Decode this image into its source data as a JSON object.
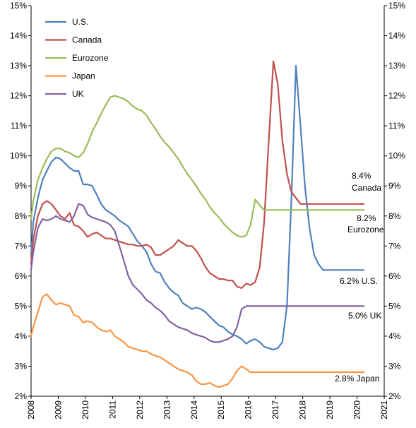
{
  "chart_data": {
    "type": "line",
    "title": "",
    "xlabel": "",
    "ylabel": "",
    "xlim": [
      2008,
      2021
    ],
    "ylim": [
      2,
      15
    ],
    "y_ticks": [
      "2%",
      "3%",
      "4%",
      "5%",
      "6%",
      "7%",
      "8%",
      "9%",
      "10%",
      "11%",
      "12%",
      "13%",
      "14%",
      "15%"
    ],
    "x_ticks": [
      "2008",
      "2009",
      "2010",
      "2011",
      "2012",
      "2013",
      "2014",
      "2015",
      "2016",
      "2017",
      "2018",
      "2019",
      "2020",
      "2021"
    ],
    "grid": false,
    "legend_position": "top-left",
    "series": [
      {
        "name": "U.S.",
        "color": "#4f81bd",
        "x": [
          2008.0,
          2008.08,
          2008.25,
          2008.42,
          2008.58,
          2008.75,
          2008.92,
          2009.08,
          2009.25,
          2009.42,
          2009.58,
          2009.75,
          2009.92,
          2010.08,
          2010.25,
          2010.42,
          2010.58,
          2010.75,
          2010.92,
          2011.08,
          2011.25,
          2011.42,
          2011.58,
          2011.75,
          2011.92,
          2012.08,
          2012.25,
          2012.42,
          2012.58,
          2012.75,
          2012.92,
          2013.08,
          2013.25,
          2013.42,
          2013.58,
          2013.75,
          2013.92,
          2014.08,
          2014.25,
          2014.42,
          2014.58,
          2014.75,
          2014.92,
          2015.08,
          2015.25,
          2015.42,
          2015.58,
          2015.75,
          2015.92,
          2016.08,
          2016.25,
          2016.42,
          2016.58,
          2016.75,
          2016.92,
          2017.08,
          2017.25,
          2017.42,
          2017.58,
          2017.75,
          2017.92,
          2018.08,
          2018.25,
          2018.42,
          2018.58,
          2018.75,
          2018.92,
          2019.08,
          2019.25,
          2019.42,
          2019.5,
          2019.58,
          2019.67,
          2019.75,
          2019.83,
          2019.92,
          2020.0,
          2020.08,
          2020.17,
          2020.25
        ],
        "values": [
          6.7,
          7.8,
          8.6,
          9.2,
          9.5,
          9.8,
          9.95,
          9.9,
          9.75,
          9.6,
          9.5,
          9.5,
          9.05,
          9.05,
          9.0,
          8.7,
          8.4,
          8.2,
          8.1,
          8.0,
          7.85,
          7.75,
          7.65,
          7.4,
          7.15,
          7.0,
          6.8,
          6.4,
          6.15,
          6.1,
          5.8,
          5.6,
          5.45,
          5.35,
          5.1,
          5.0,
          4.9,
          4.95,
          4.9,
          4.8,
          4.65,
          4.5,
          4.35,
          4.3,
          4.15,
          4.05,
          4.0,
          3.9,
          3.75,
          3.85,
          3.9,
          3.8,
          3.65,
          3.6,
          3.55,
          3.6,
          3.8,
          5.0,
          8.5,
          13.0,
          11.0,
          9.0,
          7.6,
          6.7,
          6.4,
          6.2,
          6.2,
          6.2,
          6.2,
          6.2,
          6.2,
          6.2,
          6.2,
          6.2,
          6.2,
          6.2,
          6.2,
          6.2,
          6.2,
          6.2
        ]
      },
      {
        "name": "Canada",
        "color": "#c0504d",
        "x": [
          2008.0,
          2008.08,
          2008.25,
          2008.42,
          2008.58,
          2008.75,
          2008.92,
          2009.08,
          2009.25,
          2009.42,
          2009.58,
          2009.75,
          2009.92,
          2010.08,
          2010.25,
          2010.42,
          2010.58,
          2010.75,
          2010.92,
          2011.08,
          2011.25,
          2011.42,
          2011.58,
          2011.75,
          2011.92,
          2012.08,
          2012.25,
          2012.42,
          2012.58,
          2012.75,
          2012.92,
          2013.08,
          2013.25,
          2013.42,
          2013.58,
          2013.75,
          2013.92,
          2014.08,
          2014.25,
          2014.42,
          2014.58,
          2014.75,
          2014.92,
          2015.08,
          2015.25,
          2015.42,
          2015.58,
          2015.75,
          2015.92,
          2016.08,
          2016.25,
          2016.42,
          2016.58,
          2016.75,
          2016.92,
          2017.08,
          2017.25,
          2017.42,
          2017.58,
          2017.75,
          2017.92,
          2018.08,
          2018.25,
          2018.42,
          2018.58,
          2018.75,
          2018.92,
          2019.08,
          2019.25,
          2019.42,
          2019.5,
          2019.58,
          2019.67,
          2019.75,
          2019.83,
          2019.92,
          2020.0,
          2020.08,
          2020.17,
          2020.25
        ],
        "values": [
          6.4,
          7.2,
          8.0,
          8.4,
          8.5,
          8.4,
          8.2,
          8.0,
          7.9,
          8.1,
          7.7,
          7.65,
          7.5,
          7.3,
          7.4,
          7.45,
          7.35,
          7.25,
          7.25,
          7.2,
          7.15,
          7.1,
          7.05,
          7.05,
          7.0,
          7.0,
          7.05,
          6.95,
          6.7,
          6.7,
          6.8,
          6.9,
          7.0,
          7.2,
          7.1,
          7.0,
          7.0,
          6.85,
          6.6,
          6.3,
          6.1,
          6.0,
          5.9,
          5.9,
          5.85,
          5.85,
          5.65,
          5.6,
          5.75,
          5.7,
          5.8,
          6.3,
          7.8,
          10.5,
          13.15,
          12.4,
          10.5,
          9.4,
          8.8,
          8.6,
          8.4,
          8.4,
          8.4,
          8.4,
          8.4,
          8.4,
          8.4,
          8.4,
          8.4,
          8.4,
          8.4,
          8.4,
          8.4,
          8.4,
          8.4,
          8.4,
          8.4,
          8.4,
          8.4,
          8.4
        ]
      },
      {
        "name": "Eurozone",
        "color": "#9bbb59",
        "x": [
          2008.0,
          2008.08,
          2008.25,
          2008.42,
          2008.58,
          2008.75,
          2008.92,
          2009.08,
          2009.25,
          2009.42,
          2009.58,
          2009.75,
          2009.92,
          2010.08,
          2010.25,
          2010.42,
          2010.58,
          2010.75,
          2010.92,
          2011.08,
          2011.25,
          2011.42,
          2011.58,
          2011.75,
          2011.92,
          2012.08,
          2012.25,
          2012.42,
          2012.58,
          2012.75,
          2012.92,
          2013.08,
          2013.25,
          2013.42,
          2013.58,
          2013.75,
          2013.92,
          2014.08,
          2014.25,
          2014.42,
          2014.58,
          2014.75,
          2014.92,
          2015.08,
          2015.25,
          2015.42,
          2015.58,
          2015.75,
          2015.92,
          2016.08,
          2016.25,
          2016.42,
          2016.58,
          2016.75,
          2016.92,
          2017.08,
          2017.25,
          2017.42,
          2017.58,
          2017.75,
          2017.92,
          2018.08,
          2018.25,
          2018.42,
          2018.58,
          2018.75,
          2018.92,
          2019.08,
          2019.25,
          2019.42,
          2019.5,
          2019.58,
          2019.67,
          2019.75,
          2019.83,
          2019.92,
          2020.0,
          2020.08,
          2020.17,
          2020.25
        ],
        "values": [
          7.9,
          8.5,
          9.2,
          9.6,
          9.9,
          10.15,
          10.25,
          10.25,
          10.15,
          10.1,
          10.0,
          9.95,
          10.1,
          10.4,
          10.8,
          11.1,
          11.4,
          11.7,
          11.95,
          12.0,
          11.95,
          11.9,
          11.8,
          11.65,
          11.55,
          11.5,
          11.35,
          11.1,
          10.9,
          10.65,
          10.45,
          10.3,
          10.1,
          9.9,
          9.65,
          9.4,
          9.2,
          9.0,
          8.75,
          8.55,
          8.3,
          8.1,
          7.95,
          7.75,
          7.6,
          7.45,
          7.35,
          7.3,
          7.35,
          7.7,
          8.55,
          8.35,
          8.2,
          8.2,
          8.2,
          8.2,
          8.2,
          8.2,
          8.2,
          8.2,
          8.2,
          8.2,
          8.2,
          8.2,
          8.2,
          8.2,
          8.2,
          8.2,
          8.2,
          8.2,
          8.2,
          8.2,
          8.2,
          8.2,
          8.2,
          8.2,
          8.2,
          8.2,
          8.2,
          8.2
        ]
      },
      {
        "name": "Japan",
        "color": "#f79646",
        "x": [
          2008.0,
          2008.08,
          2008.25,
          2008.42,
          2008.58,
          2008.75,
          2008.92,
          2009.08,
          2009.25,
          2009.42,
          2009.58,
          2009.75,
          2009.92,
          2010.08,
          2010.25,
          2010.42,
          2010.58,
          2010.75,
          2010.92,
          2011.08,
          2011.25,
          2011.42,
          2011.58,
          2011.75,
          2011.92,
          2012.08,
          2012.25,
          2012.42,
          2012.58,
          2012.75,
          2012.92,
          2013.08,
          2013.25,
          2013.42,
          2013.58,
          2013.75,
          2013.92,
          2014.08,
          2014.25,
          2014.42,
          2014.58,
          2014.75,
          2014.92,
          2015.08,
          2015.25,
          2015.42,
          2015.58,
          2015.75,
          2015.92,
          2016.08,
          2016.25,
          2016.42,
          2016.58,
          2016.75,
          2016.92,
          2017.08,
          2017.25,
          2017.42,
          2017.58,
          2017.75,
          2017.92,
          2018.08,
          2018.25,
          2018.42,
          2018.58,
          2018.75,
          2018.92,
          2019.08,
          2019.25,
          2019.42,
          2019.5,
          2019.58,
          2019.67,
          2019.75,
          2019.83,
          2019.92,
          2020.0,
          2020.08,
          2020.17,
          2020.25
        ],
        "values": [
          4.0,
          4.3,
          4.8,
          5.3,
          5.4,
          5.2,
          5.05,
          5.1,
          5.05,
          5.0,
          4.7,
          4.65,
          4.45,
          4.5,
          4.45,
          4.3,
          4.2,
          4.15,
          4.2,
          4.0,
          3.9,
          3.8,
          3.65,
          3.6,
          3.55,
          3.5,
          3.5,
          3.4,
          3.35,
          3.3,
          3.2,
          3.1,
          3.0,
          2.9,
          2.85,
          2.8,
          2.7,
          2.5,
          2.4,
          2.4,
          2.45,
          2.35,
          2.3,
          2.35,
          2.4,
          2.6,
          2.85,
          3.0,
          2.9,
          2.8,
          2.8,
          2.8,
          2.8,
          2.8,
          2.8,
          2.8,
          2.8,
          2.8,
          2.8,
          2.8,
          2.8,
          2.8,
          2.8,
          2.8,
          2.8,
          2.8,
          2.8,
          2.8,
          2.8,
          2.8,
          2.8,
          2.8,
          2.8,
          2.8,
          2.8,
          2.8,
          2.8,
          2.8,
          2.8,
          2.8
        ]
      },
      {
        "name": "UK",
        "color": "#8064a2",
        "x": [
          2008.0,
          2008.08,
          2008.25,
          2008.42,
          2008.58,
          2008.75,
          2008.92,
          2009.08,
          2009.25,
          2009.42,
          2009.58,
          2009.75,
          2009.92,
          2010.08,
          2010.25,
          2010.42,
          2010.58,
          2010.75,
          2010.92,
          2011.08,
          2011.25,
          2011.42,
          2011.58,
          2011.75,
          2011.92,
          2012.08,
          2012.25,
          2012.42,
          2012.58,
          2012.75,
          2012.92,
          2013.08,
          2013.25,
          2013.42,
          2013.58,
          2013.75,
          2013.92,
          2014.08,
          2014.25,
          2014.42,
          2014.58,
          2014.75,
          2014.92,
          2015.08,
          2015.25,
          2015.42,
          2015.58,
          2015.75,
          2015.92,
          2016.08,
          2016.25,
          2016.42,
          2016.58,
          2016.75,
          2016.92,
          2017.08,
          2017.25,
          2017.42,
          2017.58,
          2017.75,
          2017.92,
          2018.08,
          2018.25,
          2018.42,
          2018.58,
          2018.75,
          2018.92,
          2019.08,
          2019.25,
          2019.42,
          2019.5,
          2019.58,
          2019.67,
          2019.75,
          2019.83,
          2019.92,
          2020.0,
          2020.08,
          2020.17,
          2020.25
        ],
        "values": [
          6.2,
          6.8,
          7.6,
          7.9,
          7.85,
          7.9,
          8.0,
          7.9,
          7.85,
          7.8,
          8.0,
          8.4,
          8.35,
          8.05,
          7.95,
          7.9,
          7.85,
          7.8,
          7.7,
          7.5,
          7.0,
          6.5,
          6.0,
          5.7,
          5.55,
          5.4,
          5.2,
          5.1,
          4.95,
          4.85,
          4.7,
          4.5,
          4.4,
          4.3,
          4.25,
          4.2,
          4.1,
          4.05,
          4.0,
          3.95,
          3.85,
          3.8,
          3.8,
          3.85,
          3.9,
          4.0,
          4.3,
          4.9,
          5.0,
          5.0,
          5.0,
          5.0,
          5.0,
          5.0,
          5.0,
          5.0,
          5.0,
          5.0,
          5.0,
          5.0,
          5.0,
          5.0,
          5.0,
          5.0,
          5.0,
          5.0,
          5.0,
          5.0,
          5.0,
          5.0,
          5.0,
          5.0,
          5.0,
          5.0,
          5.0,
          5.0,
          5.0,
          5.0,
          5.0,
          5.0
        ]
      }
    ],
    "annotations": [
      {
        "lines": [
          "8.4%",
          "Canada"
        ],
        "series": "Canada"
      },
      {
        "lines": [
          "8.2%",
          "Eurozone"
        ],
        "series": "Eurozone"
      },
      {
        "lines": [
          "6.2% U.S."
        ],
        "series": "U.S."
      },
      {
        "lines": [
          "5.0% UK"
        ],
        "series": "UK"
      },
      {
        "lines": [
          "2.8% Japan"
        ],
        "series": "Japan"
      }
    ]
  }
}
